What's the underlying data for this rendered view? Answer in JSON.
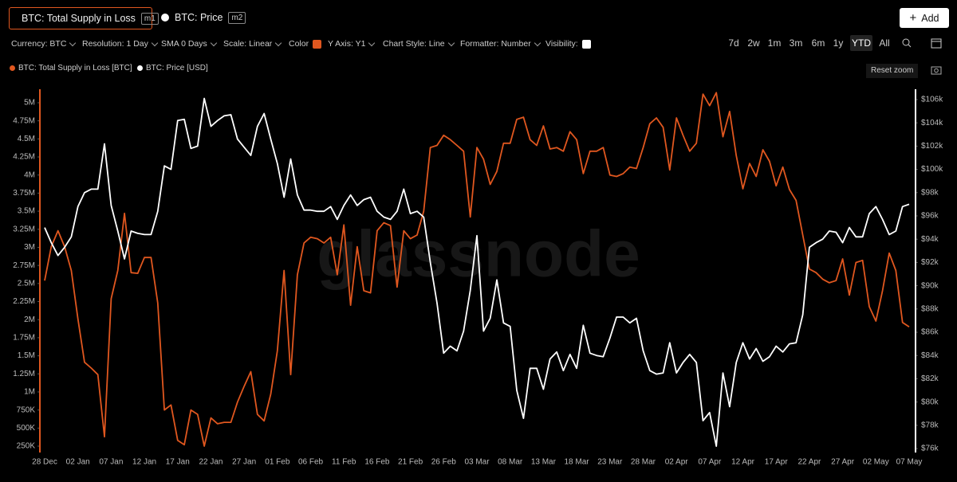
{
  "ui": {
    "series_tabs": [
      {
        "label": "BTC: Total Supply in Loss",
        "tag": "m1"
      },
      {
        "label": "BTC: Price",
        "tag": "m2"
      }
    ],
    "add_button": "Add",
    "toolbar": [
      "Currency: BTC",
      "Resolution: 1 Day",
      "SMA 0 Days",
      "Scale: Linear",
      "Color",
      "Y Axis: Y1",
      "Chart Style: Line",
      "Formatter: Number",
      "Visibility:"
    ],
    "time_ranges": [
      "7d",
      "2w",
      "1m",
      "3m",
      "6m",
      "1y",
      "YTD",
      "All"
    ],
    "reset_zoom": "Reset zoom",
    "watermark": "glassnode"
  },
  "chart_data": {
    "type": "line",
    "categories": [
      "28 Dec",
      null,
      null,
      null,
      null,
      "02 Jan",
      null,
      null,
      null,
      null,
      "07 Jan",
      null,
      null,
      null,
      null,
      "12 Jan",
      null,
      null,
      null,
      null,
      "17 Jan",
      null,
      null,
      null,
      null,
      "22 Jan",
      null,
      null,
      null,
      null,
      "27 Jan",
      null,
      null,
      null,
      null,
      "01 Feb",
      null,
      null,
      null,
      null,
      "06 Feb",
      null,
      null,
      null,
      null,
      "11 Feb",
      null,
      null,
      null,
      null,
      "16 Feb",
      null,
      null,
      null,
      null,
      "21 Feb",
      null,
      null,
      null,
      null,
      "26 Feb",
      null,
      null,
      null,
      null,
      "03 Mar",
      null,
      null,
      null,
      null,
      "08 Mar",
      null,
      null,
      null,
      null,
      "13 Mar",
      null,
      null,
      null,
      null,
      "18 Mar",
      null,
      null,
      null,
      null,
      "23 Mar",
      null,
      null,
      null,
      null,
      "28 Mar",
      null,
      null,
      null,
      null,
      "02 Apr",
      null,
      null,
      null,
      null,
      "07 Apr",
      null,
      null,
      null,
      null,
      "12 Apr",
      null,
      null,
      null,
      null,
      "17 Apr",
      null,
      null,
      null,
      null,
      "22 Apr",
      null,
      null,
      null,
      null,
      "27 Apr",
      null,
      null,
      null,
      null,
      "02 May",
      null,
      null,
      null,
      null,
      "07 May"
    ],
    "series": [
      {
        "name": "BTC: Total Supply in Loss [BTC]",
        "color": "#e0571f",
        "axis": "y",
        "values": [
          2540000,
          3010000,
          3230000,
          3010000,
          2680000,
          2010000,
          1410000,
          1330000,
          1240000,
          380000,
          2290000,
          2680000,
          3470000,
          2650000,
          2640000,
          2860000,
          2860000,
          2230000,
          750000,
          820000,
          330000,
          270000,
          750000,
          690000,
          250000,
          640000,
          560000,
          580000,
          580000,
          860000,
          1080000,
          1280000,
          690000,
          600000,
          970000,
          1570000,
          2680000,
          1240000,
          2620000,
          3060000,
          3140000,
          3120000,
          3060000,
          3140000,
          2620000,
          3310000,
          2200000,
          3010000,
          2400000,
          2370000,
          3230000,
          3340000,
          3300000,
          2450000,
          3230000,
          3120000,
          3170000,
          3500000,
          4380000,
          4410000,
          4550000,
          4490000,
          4410000,
          4330000,
          3420000,
          4380000,
          4220000,
          3870000,
          4050000,
          4440000,
          4440000,
          4770000,
          4800000,
          4490000,
          4410000,
          4680000,
          4360000,
          4380000,
          4330000,
          4600000,
          4490000,
          4020000,
          4330000,
          4330000,
          4380000,
          4000000,
          3980000,
          4020000,
          4110000,
          4090000,
          4380000,
          4710000,
          4790000,
          4660000,
          4070000,
          4790000,
          4550000,
          4330000,
          4440000,
          5120000,
          4960000,
          5140000,
          4530000,
          4880000,
          4270000,
          3810000,
          4160000,
          3980000,
          4350000,
          4190000,
          3850000,
          4110000,
          3800000,
          3650000,
          3170000,
          2700000,
          2650000,
          2560000,
          2510000,
          2540000,
          2840000,
          2340000,
          2790000,
          2820000,
          2180000,
          1980000,
          2400000,
          2920000,
          2680000,
          1960000,
          1900000
        ]
      },
      {
        "name": "BTC: Price [USD]",
        "color": "#ffffff",
        "axis": "y2",
        "values": [
          95000,
          93700,
          92600,
          93300,
          94200,
          96800,
          98000,
          98300,
          98300,
          102200,
          96900,
          94700,
          92300,
          94700,
          94500,
          94400,
          94400,
          96400,
          100300,
          100000,
          104200,
          104300,
          101800,
          102000,
          106100,
          103700,
          104200,
          104600,
          104700,
          102600,
          101900,
          101200,
          103700,
          104800,
          102600,
          100500,
          97600,
          100900,
          97800,
          96500,
          96500,
          96400,
          96400,
          96800,
          95700,
          96900,
          97800,
          96900,
          97400,
          97600,
          96400,
          95900,
          95700,
          96400,
          98300,
          96200,
          96400,
          95900,
          92000,
          88500,
          84200,
          84800,
          84400,
          86100,
          89600,
          94300,
          86100,
          87200,
          90500,
          86800,
          86500,
          81000,
          78600,
          82900,
          82900,
          81100,
          83700,
          84300,
          82700,
          84100,
          82900,
          86600,
          84200,
          84000,
          83900,
          85500,
          87300,
          87300,
          86800,
          87200,
          84400,
          82700,
          82400,
          82500,
          85100,
          82500,
          83400,
          84100,
          83400,
          78400,
          79100,
          76200,
          82500,
          79600,
          83400,
          85100,
          83700,
          84600,
          83500,
          83900,
          84800,
          84300,
          85000,
          85100,
          87500,
          93300,
          93700,
          94000,
          94700,
          94600,
          93700,
          95000,
          94200,
          94200,
          96200,
          96800,
          95700,
          94400,
          94700,
          96800,
          97000
        ]
      }
    ],
    "ylim": [
      162000,
      5187000
    ],
    "yticks": [
      {
        "value": 250000,
        "label": "250K"
      },
      {
        "value": 500000,
        "label": "500K"
      },
      {
        "value": 750000,
        "label": "750K"
      },
      {
        "value": 1000000,
        "label": "1M"
      },
      {
        "value": 1250000,
        "label": "1.25M"
      },
      {
        "value": 1500000,
        "label": "1.5M"
      },
      {
        "value": 1750000,
        "label": "1.75M"
      },
      {
        "value": 2000000,
        "label": "2M"
      },
      {
        "value": 2250000,
        "label": "2.25M"
      },
      {
        "value": 2500000,
        "label": "2.5M"
      },
      {
        "value": 2750000,
        "label": "2.75M"
      },
      {
        "value": 3000000,
        "label": "3M"
      },
      {
        "value": 3250000,
        "label": "3.25M"
      },
      {
        "value": 3500000,
        "label": "3.5M"
      },
      {
        "value": 3750000,
        "label": "3.75M"
      },
      {
        "value": 4000000,
        "label": "4M"
      },
      {
        "value": 4250000,
        "label": "4.25M"
      },
      {
        "value": 4500000,
        "label": "4.5M"
      },
      {
        "value": 4750000,
        "label": "4.75M"
      },
      {
        "value": 5000000,
        "label": "5M"
      }
    ],
    "y2lim": [
      75660,
      106890
    ],
    "y2ticks": [
      {
        "value": 76000,
        "label": "$76k"
      },
      {
        "value": 78000,
        "label": "$78k"
      },
      {
        "value": 80000,
        "label": "$80k"
      },
      {
        "value": 82000,
        "label": "$82k"
      },
      {
        "value": 84000,
        "label": "$84k"
      },
      {
        "value": 86000,
        "label": "$86k"
      },
      {
        "value": 88000,
        "label": "$88k"
      },
      {
        "value": 90000,
        "label": "$90k"
      },
      {
        "value": 92000,
        "label": "$92k"
      },
      {
        "value": 94000,
        "label": "$94k"
      },
      {
        "value": 96000,
        "label": "$96k"
      },
      {
        "value": 98000,
        "label": "$98k"
      },
      {
        "value": 100000,
        "label": "$100k"
      },
      {
        "value": 102000,
        "label": "$102k"
      },
      {
        "value": 104000,
        "label": "$104k"
      },
      {
        "value": 106000,
        "label": "$106k"
      }
    ],
    "grid": false
  }
}
